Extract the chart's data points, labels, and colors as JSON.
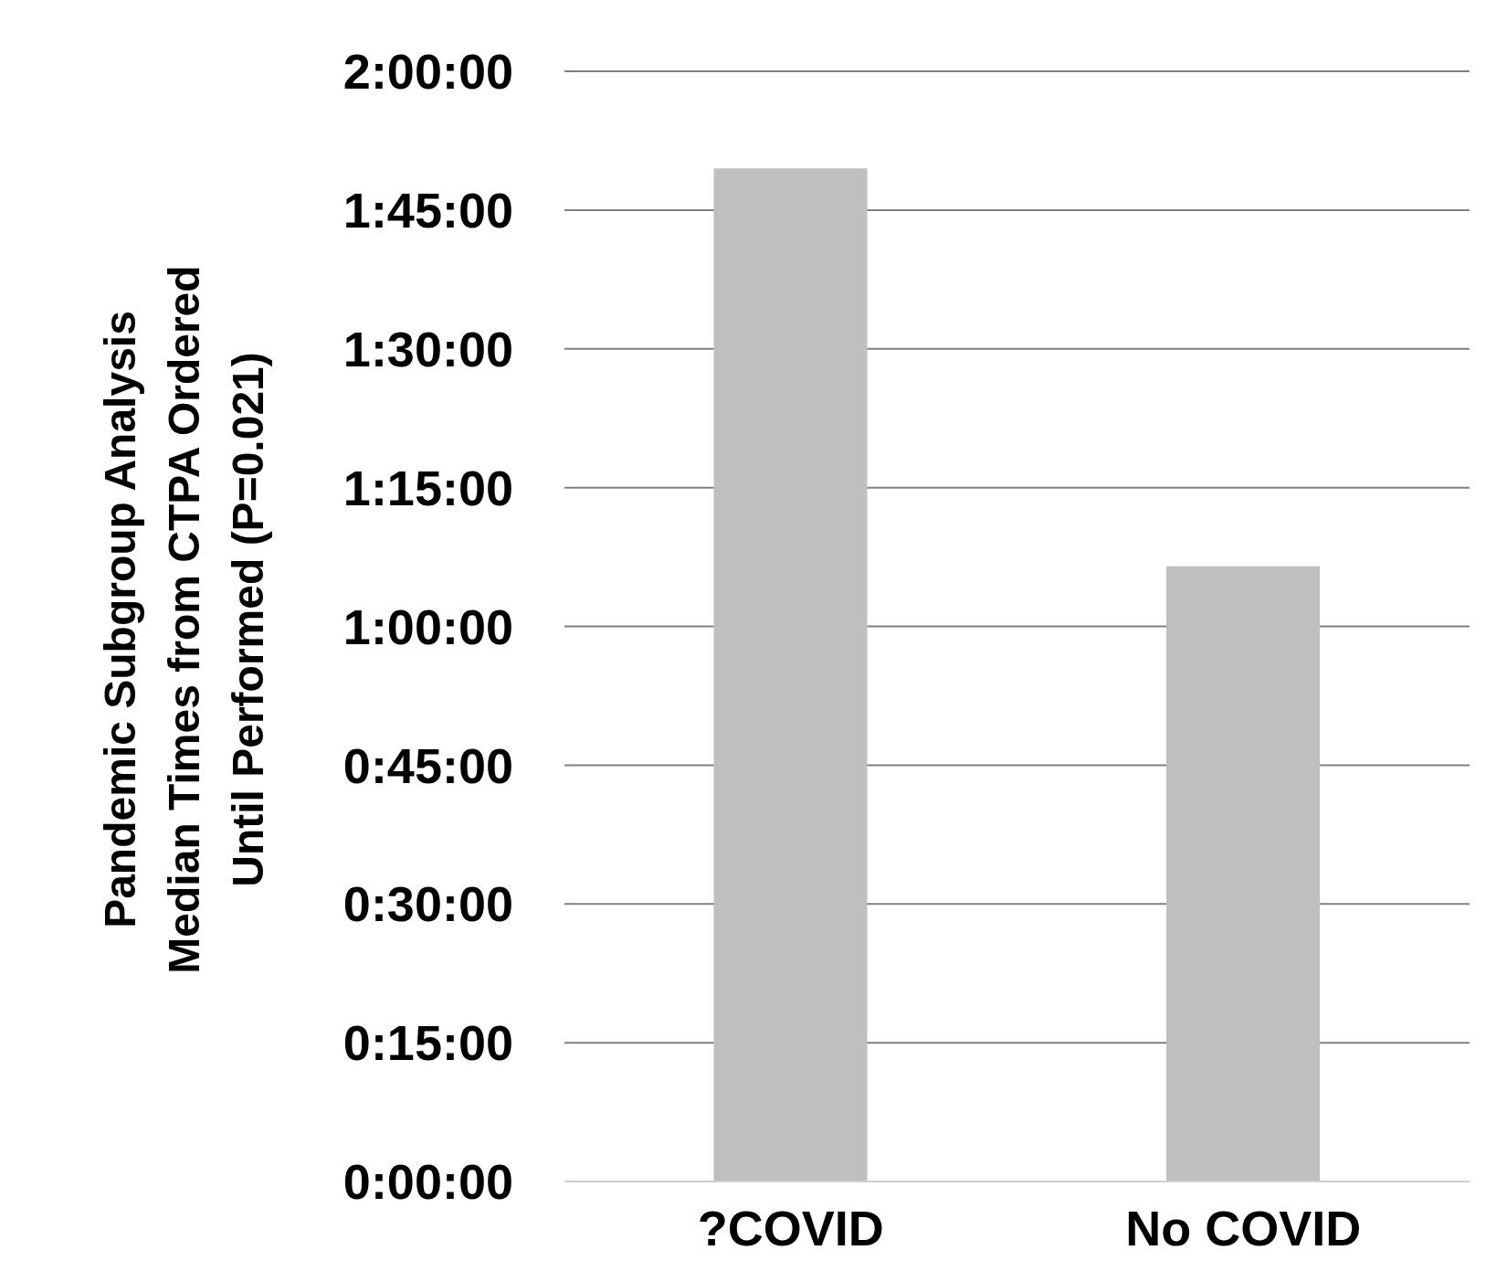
{
  "chart_data": {
    "type": "bar",
    "ylabel": "Pandemic Subgroup Analysis\nMedian Times from CTPA Ordered\nUntil Performed (P=0.021)",
    "categories": [
      "?COVID",
      "No COVID"
    ],
    "values": [
      109.5,
      66.5
    ],
    "color": "#bfbfbf",
    "ylim": [
      0,
      120
    ],
    "yticks": [
      {
        "value": 0,
        "label": "0:00:00"
      },
      {
        "value": 15,
        "label": "0:15:00"
      },
      {
        "value": 30,
        "label": "0:30:00"
      },
      {
        "value": 45,
        "label": "0:45:00"
      },
      {
        "value": 60,
        "label": "1:00:00"
      },
      {
        "value": 75,
        "label": "1:15:00"
      },
      {
        "value": 90,
        "label": "1:30:00"
      },
      {
        "value": 105,
        "label": "1:45:00"
      },
      {
        "value": 120,
        "label": "2:00:00"
      }
    ],
    "grid": "y"
  }
}
